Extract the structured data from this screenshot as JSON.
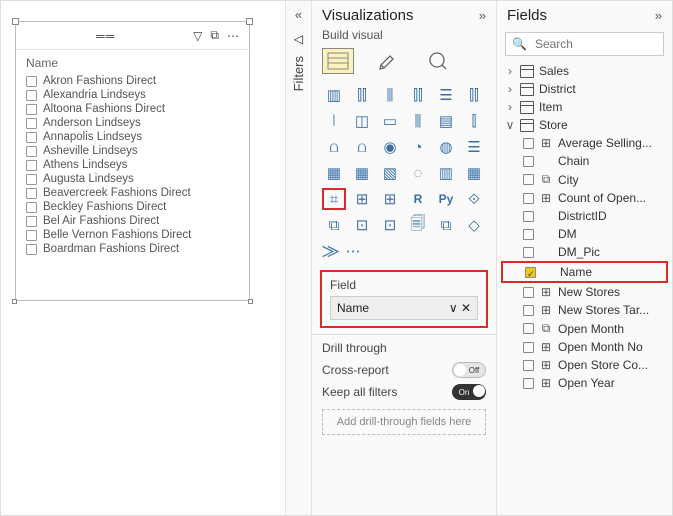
{
  "slicer": {
    "title": "Name",
    "toolbar_icons": [
      "grip",
      "filter",
      "focus",
      "more"
    ],
    "items": [
      "Akron Fashions Direct",
      "Alexandria Lindseys",
      "Altoona Fashions Direct",
      "Anderson Lindseys",
      "Annapolis Lindseys",
      "Asheville Lindseys",
      "Athens Lindseys",
      "Augusta Lindseys",
      "Beavercreek Fashions Direct",
      "Beckley Fashions Direct",
      "Bel Air Fashions Direct",
      "Belle Vernon Fashions Direct",
      "Boardman Fashions Direct"
    ]
  },
  "filters_label": "Filters",
  "viz_panel": {
    "title": "Visualizations",
    "subtitle": "Build visual",
    "icons": [
      "▥",
      "⫿⫿",
      "⫼",
      "⫿⫿",
      "☰",
      "⫿⫿",
      "⦚",
      "◫",
      "▭",
      "⫼",
      "▤",
      "⫿",
      "⩍",
      "⩍",
      "◉",
      "◔",
      "◍",
      "☰",
      "▦",
      "▦",
      "▧",
      "◌",
      "▥",
      "▦",
      "⌗",
      "⊞",
      "⊞",
      "R",
      "Py",
      "⟐",
      "⧉",
      "⊡",
      "⊡",
      "🗐",
      "⧉",
      "◇"
    ],
    "highlighted_icon_index": 24,
    "more": "⨠",
    "field_section_label": "Field",
    "field_chip": "Name",
    "drill_label": "Drill through",
    "cross_report_label": "Cross-report",
    "cross_report_value": "Off",
    "keep_filters_label": "Keep all filters",
    "keep_filters_value": "On",
    "drop_zone": "Add drill-through fields here"
  },
  "fields_panel": {
    "title": "Fields",
    "search_placeholder": "Search",
    "tables": [
      {
        "name": "Sales",
        "expanded": false
      },
      {
        "name": "District",
        "expanded": false
      },
      {
        "name": "Item",
        "expanded": false
      },
      {
        "name": "Store",
        "expanded": true,
        "fields": [
          {
            "name": "Average Selling...",
            "icon": "⊞",
            "checked": false
          },
          {
            "name": "Chain",
            "icon": "",
            "checked": false
          },
          {
            "name": "City",
            "icon": "⧉",
            "checked": false
          },
          {
            "name": "Count of Open...",
            "icon": "⊞",
            "checked": false
          },
          {
            "name": "DistrictID",
            "icon": "",
            "checked": false
          },
          {
            "name": "DM",
            "icon": "",
            "checked": false
          },
          {
            "name": "DM_Pic",
            "icon": "",
            "checked": false
          },
          {
            "name": "Name",
            "icon": "",
            "checked": true,
            "highlight": true
          },
          {
            "name": "New Stores",
            "icon": "⊞",
            "checked": false
          },
          {
            "name": "New Stores Tar...",
            "icon": "⊞",
            "checked": false
          },
          {
            "name": "Open Month",
            "icon": "⧉",
            "checked": false
          },
          {
            "name": "Open Month No",
            "icon": "⊞",
            "checked": false
          },
          {
            "name": "Open Store Co...",
            "icon": "⊞",
            "checked": false
          },
          {
            "name": "Open Year",
            "icon": "⊞",
            "checked": false
          }
        ]
      }
    ]
  },
  "colors": {
    "accent": "#f2c811",
    "highlight": "#d92b2b",
    "icon": "#3a6fa6"
  }
}
